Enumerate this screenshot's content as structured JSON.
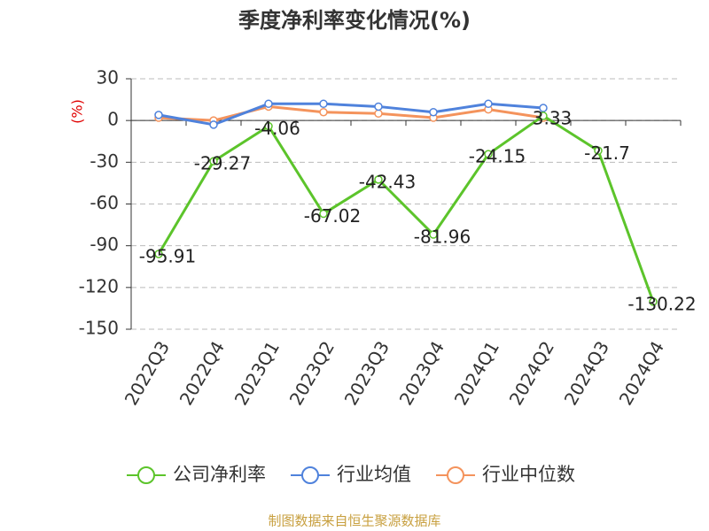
{
  "chart_data": {
    "type": "line",
    "title": "季度净利率变化情况(%)",
    "y_label": "(%)",
    "categories": [
      "2022Q3",
      "2022Q4",
      "2023Q1",
      "2023Q2",
      "2023Q3",
      "2023Q4",
      "2024Q1",
      "2024Q2",
      "2024Q3",
      "2024Q4"
    ],
    "series": [
      {
        "name": "公司净利率",
        "color": "#5cc42b",
        "values": [
          -95.91,
          -29.27,
          -4.06,
          -67.02,
          -42.43,
          -81.96,
          -24.15,
          3.33,
          -21.7,
          -130.22
        ],
        "data_labels": true
      },
      {
        "name": "行业均值",
        "color": "#4f82dc",
        "values": [
          4,
          -3,
          12,
          12,
          10,
          6,
          12,
          9,
          null,
          null
        ]
      },
      {
        "name": "行业中位数",
        "color": "#f4935c",
        "values": [
          2,
          0,
          10,
          6,
          5,
          2,
          8,
          2,
          null,
          null
        ]
      }
    ],
    "ylim": [
      -150,
      30
    ],
    "yticks": [
      -150,
      -120,
      -90,
      -60,
      -30,
      0,
      30
    ],
    "grid": true,
    "legend": "bottom",
    "source": "制图数据来自恒生聚源数据库"
  }
}
